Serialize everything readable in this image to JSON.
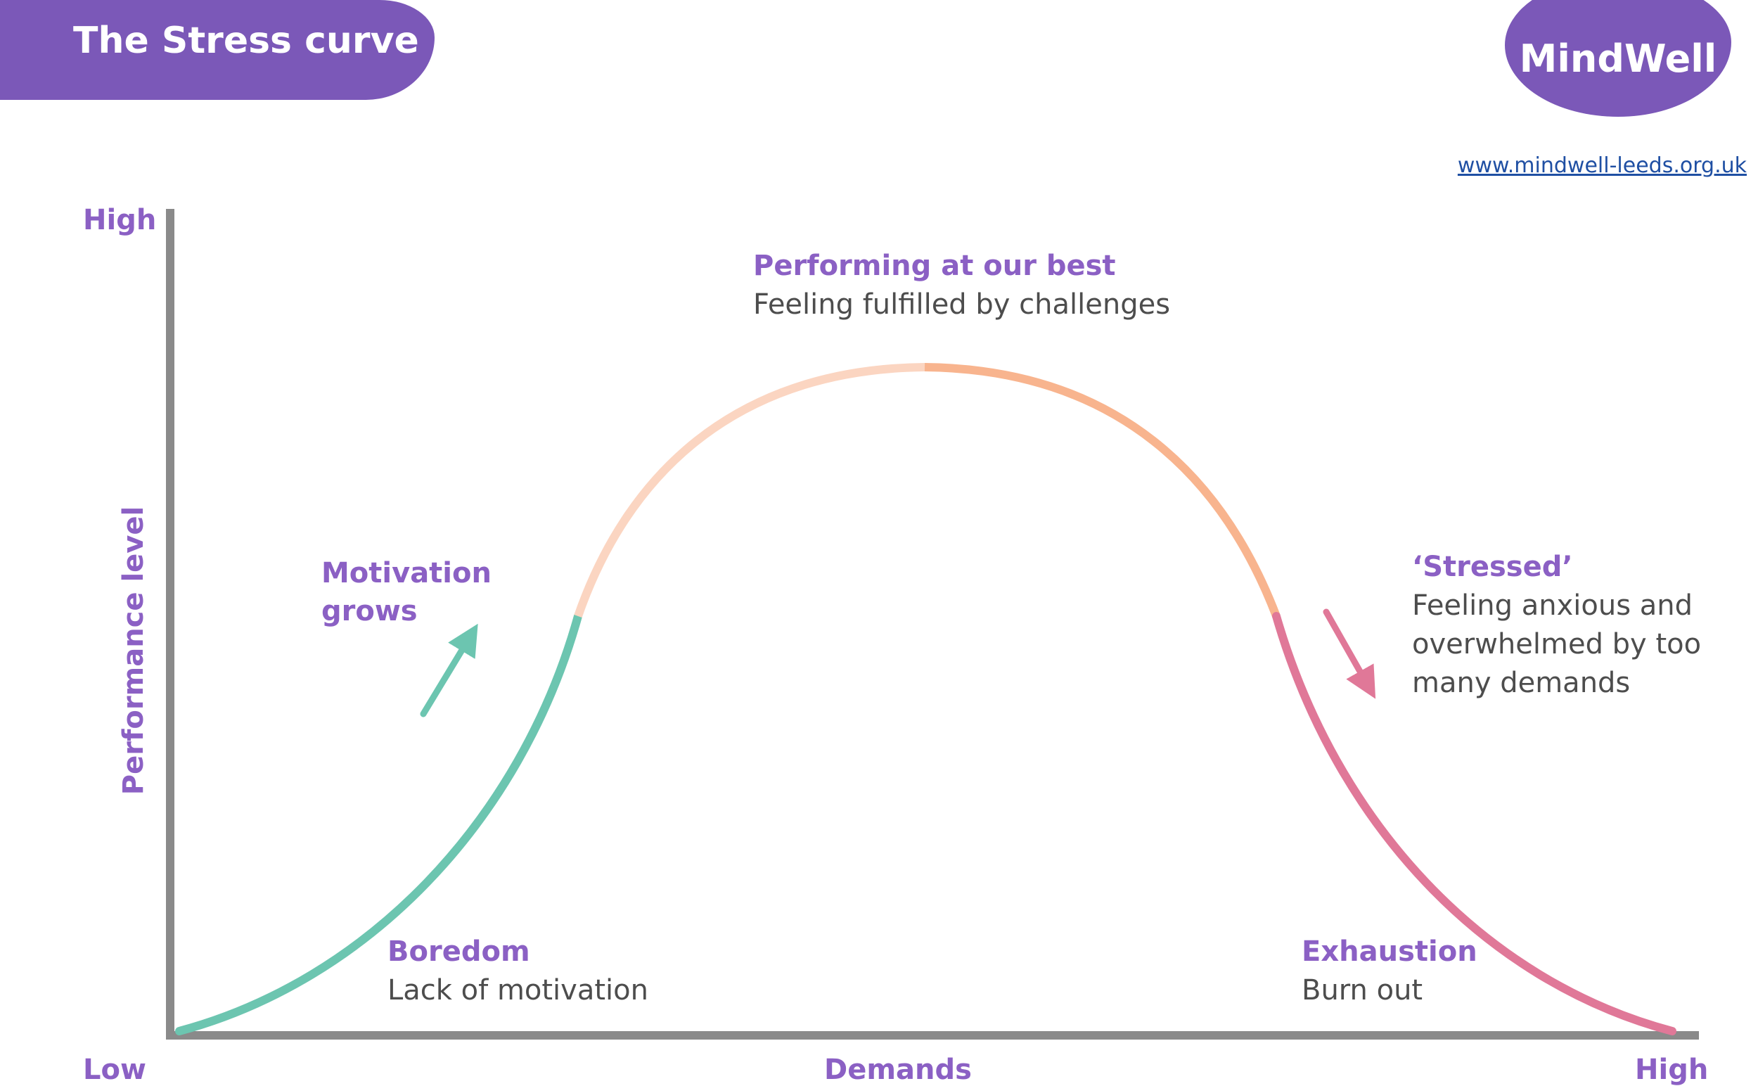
{
  "header": {
    "title": "The Stress curve",
    "logo_text": "MindWell",
    "website": "www.mindwell-leeds.org.uk"
  },
  "axes": {
    "y_high": "High",
    "y_low": "Low",
    "y_label": "Performance level",
    "x_label": "Demands",
    "x_high": "High"
  },
  "zones": {
    "boredom": {
      "heading": "Boredom",
      "text": "Lack of motivation"
    },
    "motivation": {
      "line1": "Motivation",
      "line2": "grows"
    },
    "best": {
      "heading": "Performing at our best",
      "text": "Feeling fulfilled by challenges"
    },
    "stressed": {
      "heading": "‘Stressed’",
      "line1": "Feeling anxious and",
      "line2": "overwhelmed by too",
      "line3": "many demands"
    },
    "exhaustion": {
      "heading": "Exhaustion",
      "text": "Burn out"
    }
  },
  "colors": {
    "brand_purple": "#7b58b8",
    "label_purple": "#8b60c4",
    "axis_grey": "#8a8a8a",
    "boredom_green": "#6cc5b0",
    "best_light_peach": "#fbd5c1",
    "best_orange": "#f8b48e",
    "stressed_pink": "#e07898"
  },
  "icons": {
    "motivation_arrow": "arrow-up-right-icon",
    "stressed_arrow": "arrow-down-right-icon"
  }
}
